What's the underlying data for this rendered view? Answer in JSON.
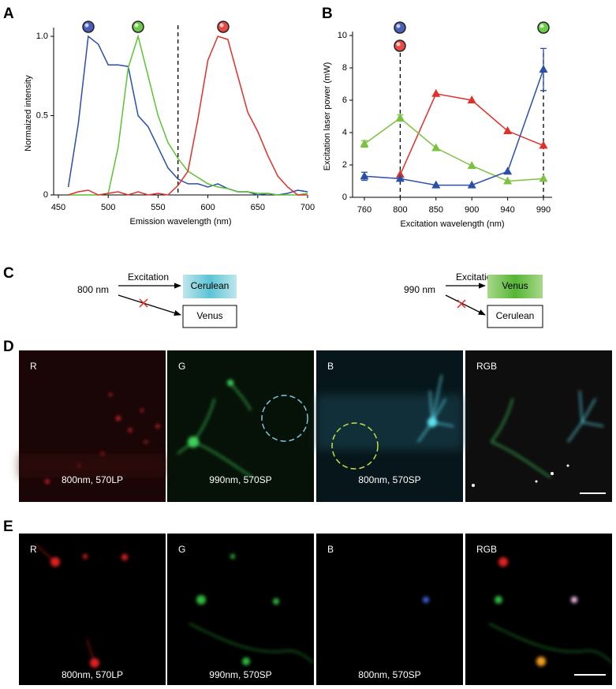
{
  "panel_labels": [
    "A",
    "B",
    "C",
    "D",
    "E"
  ],
  "chart_data": [
    {
      "type": "line",
      "xlabel": "Emission wavelength (nm)",
      "ylabel": "Normaized intensity",
      "x": [
        460,
        470,
        480,
        490,
        500,
        510,
        520,
        530,
        540,
        550,
        560,
        570,
        580,
        590,
        600,
        610,
        620,
        630,
        640,
        650,
        660,
        670,
        680,
        690,
        700
      ],
      "series": [
        {
          "color": "#2a4fa8",
          "values": [
            0.05,
            0.45,
            1.0,
            0.95,
            0.82,
            0.82,
            0.81,
            0.5,
            0.43,
            0.3,
            0.17,
            0.1,
            0.07,
            0.07,
            0.05,
            0.07,
            0.04,
            0.02,
            0.02,
            0.0,
            0.01,
            0.0,
            0.01,
            0.03,
            0.02
          ]
        },
        {
          "color": "#5cc236",
          "values": [
            0,
            0,
            0,
            0,
            0.01,
            0.3,
            0.8,
            1.0,
            0.75,
            0.5,
            0.33,
            0.23,
            0.15,
            0.11,
            0.07,
            0.05,
            0.04,
            0.02,
            0.02,
            0.01,
            0.01,
            0.0,
            0.0,
            0.0,
            0.01
          ]
        },
        {
          "color": "#e0302a",
          "values": [
            0,
            0.02,
            0.03,
            0.0,
            0.01,
            0.02,
            0.0,
            0.02,
            0.0,
            0.01,
            0.0,
            0.06,
            0.15,
            0.48,
            0.85,
            1.0,
            0.98,
            0.75,
            0.52,
            0.4,
            0.25,
            0.12,
            0.05,
            0.0,
            0.0
          ]
        }
      ],
      "xlim": [
        450,
        700
      ],
      "xticks": [
        450,
        500,
        550,
        600,
        650,
        700
      ],
      "ylim": [
        0,
        1.03
      ],
      "yticks": [
        0,
        0.5,
        {
          "value": 1,
          "label": "1.0"
        }
      ],
      "cutoff": 570
    },
    {
      "type": "line",
      "xlabel": "Excitation wavelength (nm)",
      "ylabel": "Excitation laser power (mW)",
      "categories": [
        "760",
        "800",
        "850",
        "900",
        "940",
        "990"
      ],
      "series": [
        {
          "color": "#e0302a",
          "values": [
            null,
            1.4,
            6.4,
            6.0,
            4.1,
            3.2
          ],
          "errors": [
            null,
            null,
            null,
            null,
            null,
            null
          ]
        },
        {
          "color": "#7cc242",
          "values": [
            3.3,
            4.9,
            3.05,
            1.95,
            1.0,
            1.15
          ],
          "errors": [
            0.2,
            0.2,
            null,
            null,
            null,
            null
          ]
        },
        {
          "color": "#2a4fa8",
          "values": [
            1.3,
            1.15,
            0.75,
            0.75,
            1.6,
            7.9
          ],
          "errors": [
            0.25,
            null,
            null,
            null,
            null,
            1.3
          ]
        }
      ],
      "marker": "triangle",
      "ylim": [
        0,
        10
      ],
      "yticks": [
        0,
        2,
        4,
        6,
        8,
        10
      ],
      "dashed_categories": [
        1,
        5
      ]
    }
  ],
  "diagram": {
    "left": {
      "wavelength": "800 nm",
      "arrow_label": "Excitation",
      "excited": "Cerulean",
      "not_excited": "Venus"
    },
    "right": {
      "wavelength": "990 nm",
      "arrow_label": "Excitation",
      "excited": "Venus",
      "not_excited": "Cerulean"
    }
  },
  "images": {
    "D": {
      "channels": [
        "R",
        "G",
        "B",
        "RGB"
      ],
      "captions": [
        "800nm, 570LP",
        "990nm, 570SP",
        "800nm, 570SP"
      ]
    },
    "E": {
      "channels": [
        "R",
        "G",
        "B",
        "RGB"
      ],
      "captions": [
        "800nm, 570LP",
        "990nm, 570SP",
        "800nm, 570SP"
      ]
    }
  }
}
